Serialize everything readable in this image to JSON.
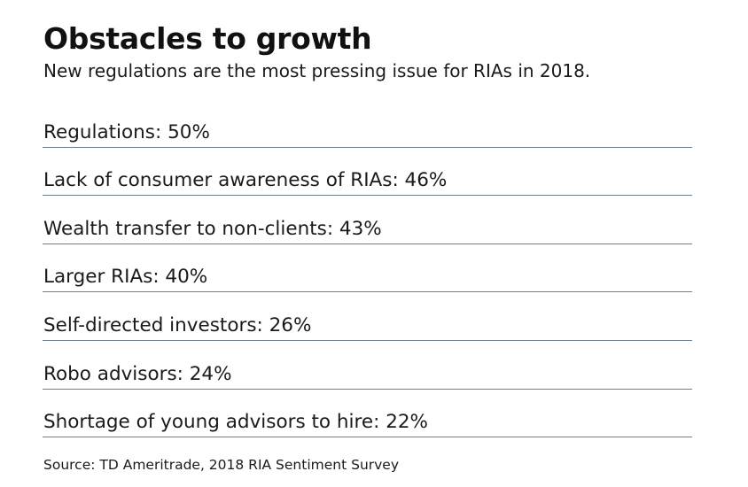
{
  "title": "Obstacles to growth",
  "subtitle": "New regulations are the most pressing issue for RIAs in 2018.",
  "source": "Source: TD Ameritrade, 2018 RIA Sentiment Survey",
  "chart_data": {
    "type": "table",
    "title": "Obstacles to growth",
    "subtitle": "New regulations are the most pressing issue for RIAs in 2018.",
    "unit": "%",
    "categories": [
      "Regulations",
      "Lack of consumer awareness of RIAs",
      "Wealth transfer to non-clients",
      "Larger RIAs",
      "Self-directed investors",
      "Robo advisors",
      "Shortage of young advisors to hire"
    ],
    "values": [
      50,
      46,
      43,
      40,
      26,
      24,
      22
    ],
    "rows": [
      {
        "label": "Regulations: 50%"
      },
      {
        "label": "Lack of consumer awareness of RIAs: 46%"
      },
      {
        "label": "Wealth transfer to non-clients: 43%"
      },
      {
        "label": "Larger RIAs: 40%"
      },
      {
        "label": "Self-directed investors: 26%"
      },
      {
        "label": "Robo advisors: 24%"
      },
      {
        "label": "Shortage of young advisors to hire: 22%"
      }
    ],
    "source": "Source: TD Ameritrade, 2018 RIA Sentiment Survey"
  },
  "colors": {
    "text": "#1a1a1a",
    "rule": "#6f7f8e",
    "background": "#ffffff"
  }
}
